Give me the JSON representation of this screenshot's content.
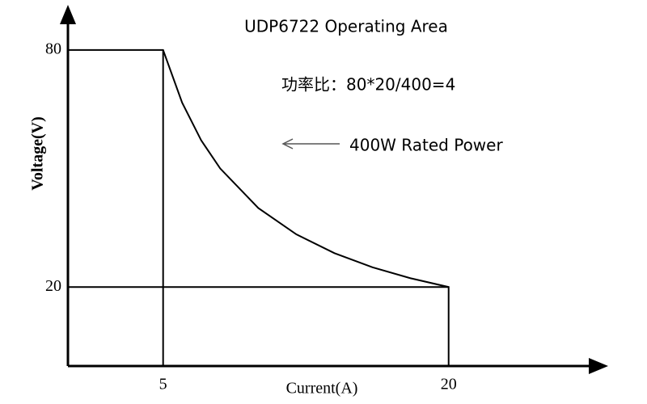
{
  "chart_data": {
    "type": "line",
    "title": "UDP6722 Operating Area",
    "annotations": [
      "功率比：80*20/400=4",
      "400W Rated Power"
    ],
    "xlabel": "Current(A)",
    "ylabel": "Voltage(V)",
    "xlim": [
      0,
      28
    ],
    "ylim": [
      0,
      90
    ],
    "xticks": [
      5,
      20
    ],
    "yticks": [
      20,
      80
    ],
    "series": [
      {
        "color": "#000000",
        "x": [
          0,
          5,
          6,
          7,
          8,
          10,
          12,
          14,
          16,
          18,
          20,
          20
        ],
        "values": [
          80,
          80,
          66.67,
          57.14,
          50,
          40,
          33.33,
          28.57,
          25,
          22.22,
          20,
          0
        ]
      },
      {
        "color": "#000000",
        "x": [
          0,
          20
        ],
        "values": [
          20,
          20
        ]
      },
      {
        "color": "#000000",
        "x": [
          5,
          5
        ],
        "values": [
          0,
          80
        ]
      }
    ]
  }
}
